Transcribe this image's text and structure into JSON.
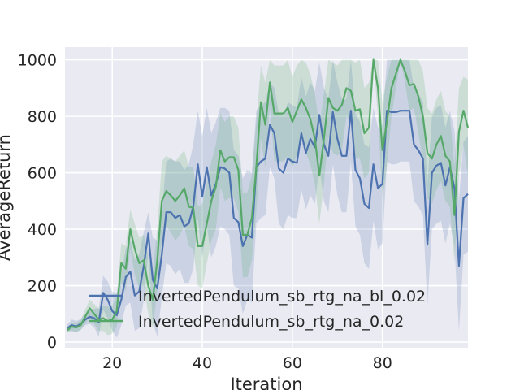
{
  "chart_data": {
    "type": "line",
    "title": "",
    "xlabel": "Iteration",
    "ylabel": "AverageReturn",
    "xlim": [
      9.5,
      99
    ],
    "ylim": [
      -20,
      1045
    ],
    "xticks": [
      20,
      40,
      60,
      80
    ],
    "yticks": [
      0,
      200,
      400,
      600,
      800,
      1000
    ],
    "grid": true,
    "legend_position": "center-left",
    "x_start": 10,
    "series": [
      {
        "name": "InvertedPendulum_sb_rtg_na_bl_0.02",
        "color": "#4c72b0",
        "values": [
          50,
          60,
          55,
          65,
          80,
          90,
          85,
          70,
          175,
          150,
          110,
          95,
          150,
          230,
          250,
          165,
          180,
          270,
          385,
          220,
          190,
          310,
          460,
          460,
          440,
          450,
          410,
          420,
          480,
          630,
          515,
          620,
          520,
          560,
          620,
          615,
          600,
          440,
          425,
          340,
          380,
          370,
          620,
          640,
          650,
          770,
          740,
          615,
          600,
          650,
          640,
          635,
          740,
          670,
          720,
          690,
          805,
          700,
          660,
          815,
          720,
          660,
          660,
          820,
          610,
          580,
          490,
          475,
          630,
          545,
          560,
          820,
          815,
          815,
          820,
          820,
          820,
          700,
          680,
          650,
          345,
          600,
          625,
          635,
          555,
          620,
          545,
          270,
          510,
          525
        ],
        "band_upper": [
          62,
          80,
          75,
          82,
          100,
          115,
          118,
          120,
          235,
          215,
          178,
          175,
          240,
          330,
          360,
          290,
          310,
          390,
          460,
          370,
          360,
          460,
          640,
          650,
          640,
          640,
          610,
          630,
          700,
          820,
          730,
          830,
          740,
          780,
          830,
          830,
          820,
          680,
          660,
          580,
          610,
          600,
          820,
          840,
          850,
          920,
          900,
          810,
          800,
          850,
          840,
          830,
          940,
          870,
          920,
          890,
          990,
          900,
          860,
          1000,
          920,
          860,
          860,
          1000,
          810,
          780,
          700,
          690,
          830,
          760,
          770,
          1000,
          1000,
          1000,
          1000,
          1000,
          1000,
          900,
          880,
          850,
          560,
          800,
          830,
          840,
          760,
          820,
          750,
          500,
          710,
          730
        ],
        "band_lower": [
          38,
          40,
          35,
          45,
          60,
          65,
          52,
          20,
          115,
          85,
          42,
          15,
          60,
          130,
          140,
          40,
          50,
          150,
          310,
          70,
          20,
          160,
          280,
          270,
          240,
          260,
          210,
          210,
          260,
          440,
          300,
          410,
          300,
          340,
          410,
          400,
          380,
          200,
          190,
          100,
          150,
          140,
          420,
          440,
          450,
          620,
          580,
          420,
          400,
          450,
          440,
          440,
          540,
          470,
          520,
          490,
          620,
          500,
          460,
          630,
          520,
          460,
          460,
          640,
          410,
          380,
          280,
          260,
          430,
          330,
          350,
          640,
          630,
          630,
          640,
          640,
          640,
          500,
          480,
          450,
          130,
          400,
          420,
          430,
          350,
          420,
          340,
          40,
          310,
          320
        ]
      },
      {
        "name": "InvertedPendulum_sb_rtg_na_0.02",
        "color": "#55a868",
        "values": [
          42,
          55,
          52,
          60,
          90,
          120,
          100,
          80,
          85,
          75,
          80,
          110,
          280,
          260,
          400,
          330,
          280,
          290,
          200,
          150,
          290,
          500,
          535,
          520,
          500,
          520,
          545,
          480,
          475,
          340,
          340,
          420,
          500,
          550,
          680,
          640,
          655,
          655,
          610,
          380,
          380,
          440,
          620,
          850,
          770,
          920,
          810,
          810,
          810,
          830,
          780,
          820,
          860,
          830,
          790,
          720,
          590,
          720,
          865,
          830,
          820,
          840,
          900,
          890,
          820,
          825,
          740,
          760,
          1000,
          900,
          680,
          780,
          900,
          950,
          1000,
          960,
          910,
          915,
          870,
          800,
          670,
          650,
          700,
          730,
          660,
          640,
          450,
          745,
          820,
          760
        ],
        "band_upper": [
          50,
          70,
          68,
          78,
          115,
          150,
          135,
          120,
          130,
          125,
          130,
          165,
          350,
          340,
          470,
          420,
          370,
          380,
          300,
          250,
          400,
          640,
          660,
          650,
          640,
          660,
          680,
          620,
          620,
          480,
          490,
          560,
          640,
          700,
          810,
          780,
          800,
          800,
          760,
          530,
          530,
          590,
          780,
          980,
          920,
          1000,
          980,
          980,
          980,
          1000,
          940,
          980,
          1000,
          990,
          950,
          880,
          760,
          880,
          1000,
          990,
          980,
          1000,
          1000,
          1000,
          990,
          1000,
          900,
          920,
          1000,
          1000,
          850,
          940,
          1000,
          1000,
          1000,
          1000,
          1000,
          1000,
          1000,
          960,
          830,
          810,
          860,
          890,
          820,
          800,
          620,
          900,
          940,
          930
        ],
        "band_lower": [
          34,
          40,
          36,
          42,
          65,
          90,
          65,
          40,
          40,
          25,
          30,
          55,
          210,
          180,
          330,
          240,
          190,
          200,
          100,
          50,
          180,
          360,
          410,
          390,
          360,
          380,
          410,
          340,
          330,
          200,
          190,
          280,
          360,
          400,
          550,
          500,
          510,
          510,
          460,
          230,
          230,
          290,
          460,
          720,
          620,
          840,
          640,
          640,
          640,
          660,
          620,
          660,
          720,
          670,
          630,
          560,
          420,
          560,
          730,
          670,
          660,
          680,
          800,
          780,
          650,
          650,
          580,
          600,
          1000,
          800,
          510,
          620,
          800,
          900,
          1000,
          920,
          820,
          830,
          740,
          640,
          510,
          490,
          540,
          570,
          500,
          480,
          280,
          590,
          700,
          590
        ]
      }
    ]
  }
}
